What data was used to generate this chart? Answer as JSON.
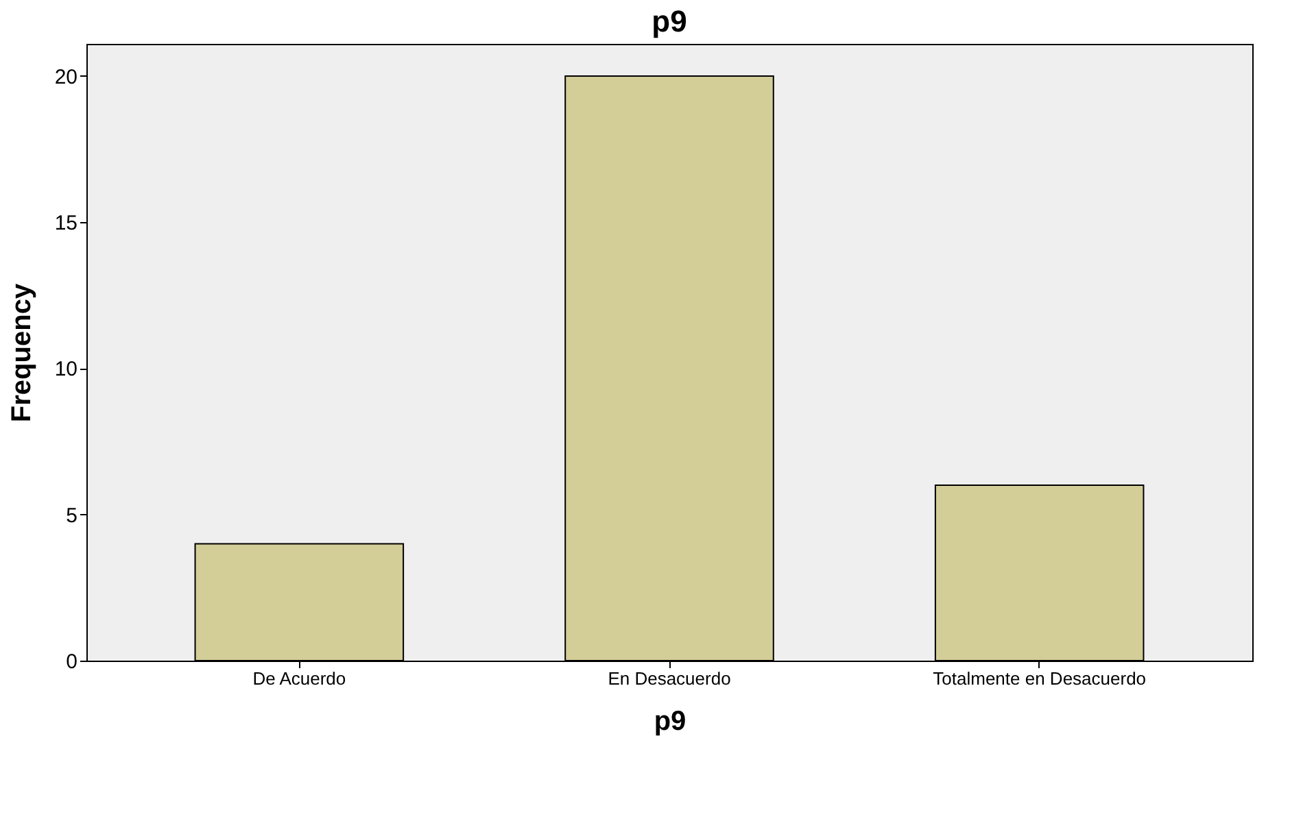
{
  "chart_data": {
    "type": "bar",
    "title": "p9",
    "xlabel": "p9",
    "ylabel": "Frequency",
    "categories": [
      "De Acuerdo",
      "En Desacuerdo",
      "Totalmente en Desacuerdo"
    ],
    "values": [
      4,
      20,
      6
    ],
    "color": "#d3cd97",
    "ylim": [
      0,
      21.1
    ],
    "yticks": [
      0,
      5,
      10,
      15,
      20
    ],
    "grid": false
  }
}
